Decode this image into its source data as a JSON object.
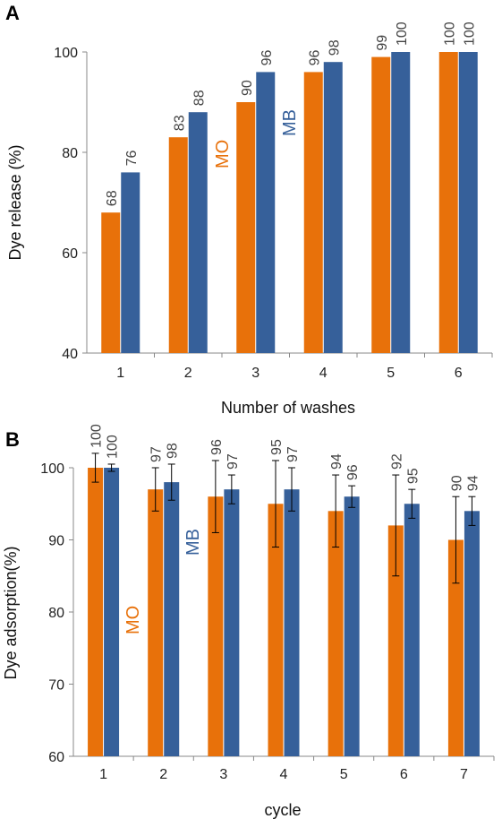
{
  "colors": {
    "mo": "#E8710A",
    "mb": "#36609A",
    "axis": "#888888"
  },
  "chart_data": [
    {
      "type": "bar",
      "panel": "A",
      "categories": [
        "1",
        "2",
        "3",
        "4",
        "5",
        "6"
      ],
      "series": [
        {
          "name": "MO",
          "values": [
            68,
            83,
            90,
            96,
            99,
            100
          ]
        },
        {
          "name": "MB",
          "values": [
            76,
            88,
            96,
            98,
            100,
            100
          ]
        }
      ],
      "xlabel": "Number of washes",
      "ylabel": "Dye release (%)",
      "ylim": [
        40,
        100
      ],
      "yticks": [
        40,
        60,
        80,
        100
      ],
      "grid": false
    },
    {
      "type": "bar",
      "panel": "B",
      "categories": [
        "1",
        "2",
        "3",
        "4",
        "5",
        "6",
        "7"
      ],
      "series": [
        {
          "name": "MO",
          "values": [
            100,
            97,
            96,
            95,
            94,
            92,
            90
          ],
          "errors": [
            2,
            3,
            5,
            6,
            5,
            7,
            6
          ]
        },
        {
          "name": "MB",
          "values": [
            100,
            98,
            97,
            97,
            96,
            95,
            94
          ],
          "errors": [
            0.5,
            2.5,
            2,
            3,
            1.5,
            2,
            2
          ]
        }
      ],
      "xlabel": "cycle",
      "ylabel": "Dye adsorption(%)",
      "ylim": [
        60,
        100
      ],
      "yticks": [
        60,
        70,
        80,
        90,
        100
      ],
      "grid": false
    }
  ]
}
